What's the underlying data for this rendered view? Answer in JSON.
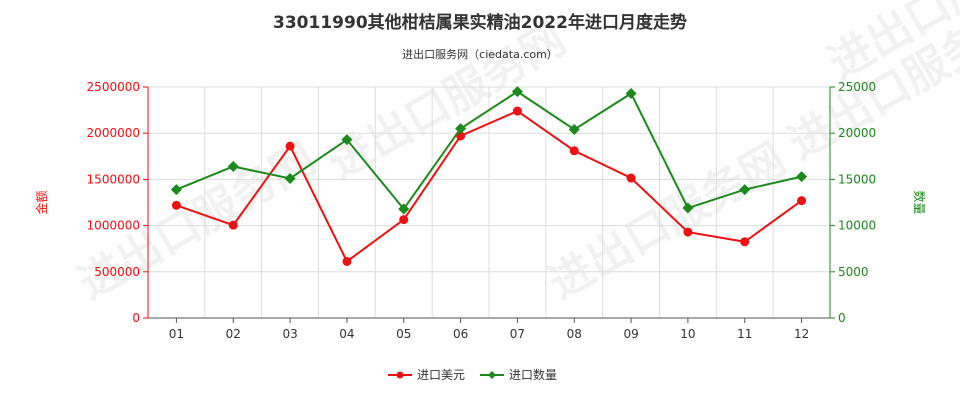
{
  "chart_data": {
    "type": "line",
    "title": "33011990其他柑桔属果实精油2022年进口月度走势",
    "subtitle": "进出口服务网（ciedata.com）",
    "categories": [
      "01",
      "02",
      "03",
      "04",
      "05",
      "06",
      "07",
      "08",
      "09",
      "10",
      "11",
      "12"
    ],
    "series": [
      {
        "name": "进口美元",
        "axis": "left",
        "color": "#ee1111",
        "marker": "circle",
        "values": [
          1220000,
          1005000,
          1860000,
          612000,
          1065000,
          1970000,
          2240000,
          1810000,
          1515000,
          930000,
          825000,
          1270000
        ]
      },
      {
        "name": "进口数量",
        "axis": "right",
        "color": "#1a8a1a",
        "marker": "diamond",
        "values": [
          13900,
          16400,
          15100,
          19300,
          11800,
          20500,
          24500,
          20400,
          24300,
          11900,
          13900,
          15300
        ]
      }
    ],
    "y_left": {
      "label": "金额",
      "range": [
        0,
        2500000
      ],
      "ticks": [
        "0",
        "500000",
        "1000000",
        "1500000",
        "2000000",
        "2500000"
      ],
      "color": "#ee1111"
    },
    "y_right": {
      "label": "数量",
      "range": [
        0,
        25000
      ],
      "ticks": [
        "0",
        "5000",
        "10000",
        "15000",
        "20000",
        "25000"
      ],
      "color": "#1a8a1a"
    },
    "grid": true,
    "legend_position": "bottom-center",
    "watermark": "进出口服务网"
  }
}
